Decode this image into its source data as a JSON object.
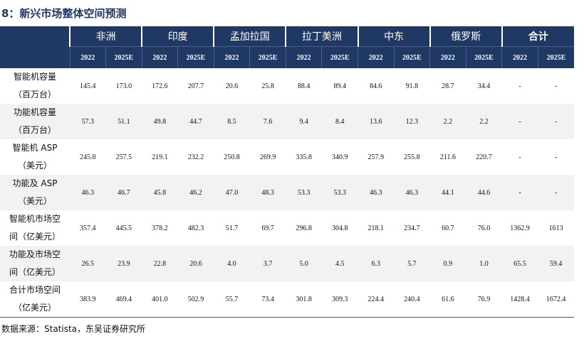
{
  "title": "8：新兴市场整体空间预测",
  "table": {
    "groups": [
      "非洲",
      "印度",
      "孟加拉国",
      "拉丁美洲",
      "中东",
      "俄罗斯",
      "合计"
    ],
    "years": [
      "2022",
      "2025E"
    ],
    "rows": [
      {
        "label": [
          "智能机容量",
          "（百万台）"
        ],
        "values": [
          "145.4",
          "173.0",
          "172.6",
          "207.7",
          "20.6",
          "25.8",
          "88.4",
          "89.4",
          "84.6",
          "91.8",
          "28.7",
          "34.4",
          "-",
          "-"
        ]
      },
      {
        "label": [
          "功能机容量",
          "（百万台）"
        ],
        "values": [
          "57.3",
          "51.1",
          "49.8",
          "44.7",
          "8.5",
          "7.6",
          "9.4",
          "8.4",
          "13.6",
          "12.3",
          "2.2",
          "2.2",
          "-",
          "-"
        ]
      },
      {
        "label": [
          "智能机 ASP",
          "（美元）"
        ],
        "values": [
          "245.8",
          "257.5",
          "219.1",
          "232.2",
          "250.8",
          "269.9",
          "335.8",
          "340.9",
          "257.9",
          "255.8",
          "211.6",
          "220.7",
          "-",
          "-"
        ]
      },
      {
        "label": [
          "功能及 ASP",
          "（美元）"
        ],
        "values": [
          "46.3",
          "46.7",
          "45.8",
          "46.2",
          "47.0",
          "48.3",
          "53.3",
          "53.3",
          "46.3",
          "46.3",
          "44.1",
          "44.6",
          "-",
          "-"
        ]
      },
      {
        "label": [
          "智能机市场空",
          "间（亿美元）"
        ],
        "values": [
          "357.4",
          "445.5",
          "378.2",
          "482.3",
          "51.7",
          "69.7",
          "296.8",
          "304.8",
          "218.1",
          "234.7",
          "60.7",
          "76.0",
          "1362.9",
          "1613"
        ]
      },
      {
        "label": [
          "功能及市场空",
          "间（亿美元）"
        ],
        "values": [
          "26.5",
          "23.9",
          "22.8",
          "20.6",
          "4.0",
          "3.7",
          "5.0",
          "4.5",
          "6.3",
          "5.7",
          "0.9",
          "1.0",
          "65.5",
          "59.4"
        ]
      },
      {
        "label": [
          "合计市场空间",
          "（亿美元）"
        ],
        "values": [
          "383.9",
          "469.4",
          "401.0",
          "502.9",
          "55.7",
          "73.4",
          "301.8",
          "309.3",
          "224.4",
          "240.4",
          "61.6",
          "76.9",
          "1428.4",
          "1672.4"
        ]
      }
    ]
  },
  "source": "数据来源：Statista，东吴证券研究所"
}
